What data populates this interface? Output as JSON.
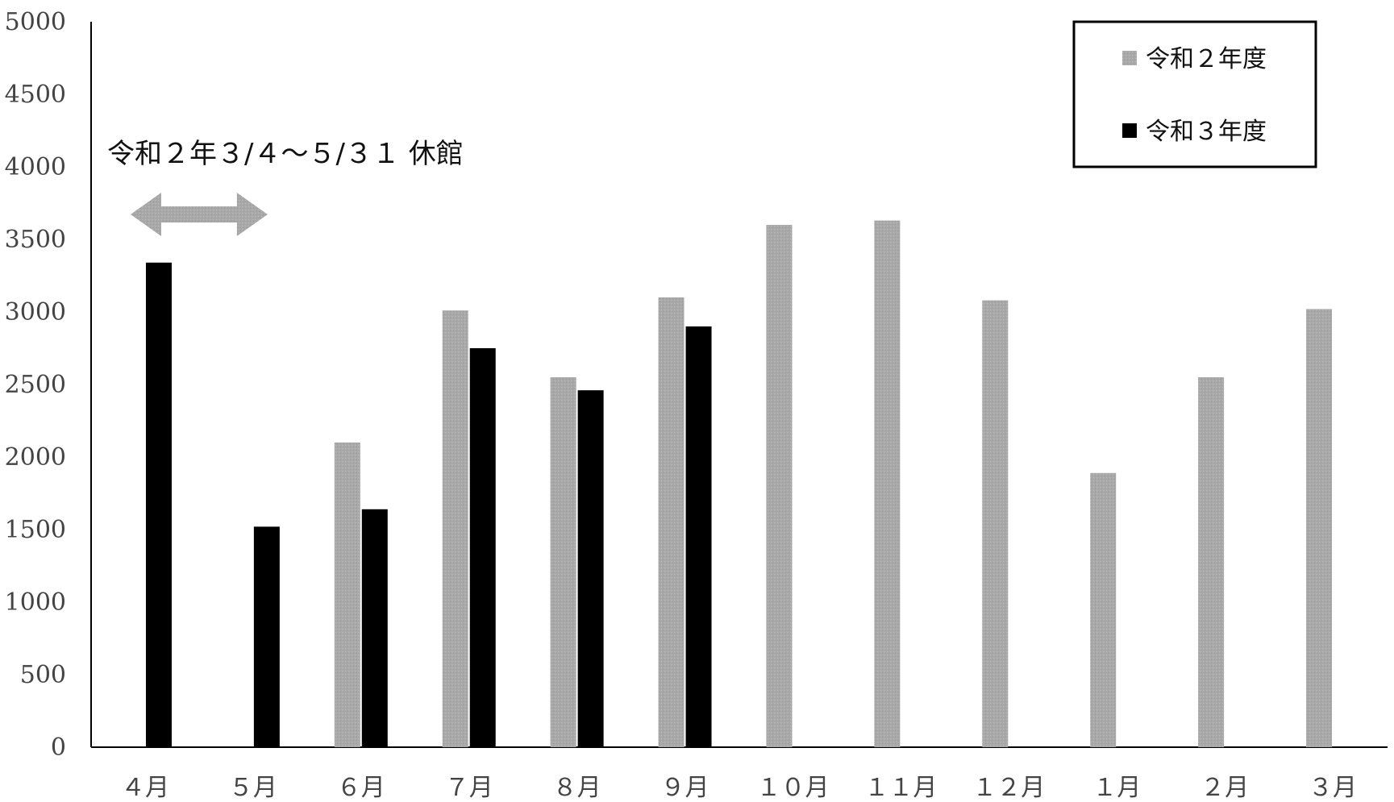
{
  "chart_data": {
    "type": "bar",
    "categories": [
      "４月",
      "５月",
      "６月",
      "７月",
      "８月",
      "９月",
      "１０月",
      "１１月",
      "１２月",
      "１月",
      "２月",
      "３月"
    ],
    "series": [
      {
        "name": "令和２年度",
        "color": "#a6a6a6",
        "values": [
          0,
          0,
          2100,
          3010,
          2550,
          3100,
          3600,
          3630,
          3080,
          1890,
          2550,
          3020
        ]
      },
      {
        "name": "令和３年度",
        "color": "#000000",
        "values": [
          3340,
          1520,
          1640,
          2750,
          2460,
          2900,
          null,
          null,
          null,
          null,
          null,
          null
        ]
      }
    ],
    "yticks": [
      "5000",
      "4500",
      "4000",
      "3500",
      "3000",
      "2500",
      "2000",
      "1500",
      "1000",
      "500",
      "0"
    ],
    "ylim": [
      0,
      5000
    ],
    "ystep": 500,
    "legend_position": "top-right",
    "annotation": {
      "text": "令和２年３/４～５/３１ 休館",
      "arrow_color": "#a6a6a6",
      "arrow_span_categories": [
        "４月",
        "５月"
      ]
    }
  }
}
